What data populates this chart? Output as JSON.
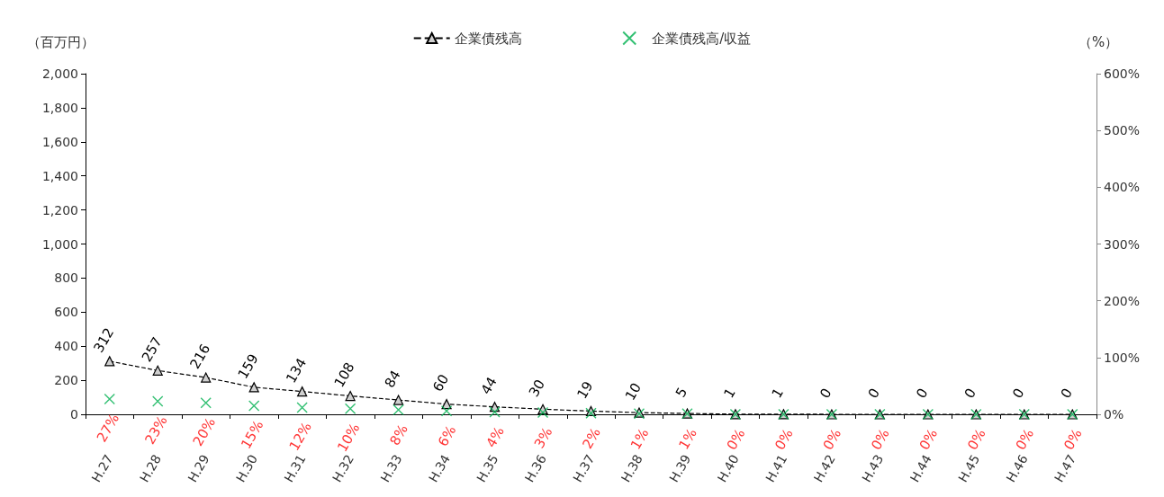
{
  "chart_data": {
    "type": "line",
    "categories": [
      "H.27",
      "H.28",
      "H.29",
      "H.30",
      "H.31",
      "H.32",
      "H.33",
      "H.34",
      "H.35",
      "H.36",
      "H.37",
      "H.38",
      "H.39",
      "H.40",
      "H.41",
      "H.42",
      "H.43",
      "H.44",
      "H.45",
      "H.46",
      "H.47"
    ],
    "ylabel": "（百万円）",
    "y2label": "（%）",
    "series": [
      {
        "name": "企業債残高",
        "color": "#000000",
        "marker": "triangle",
        "line_style": "dashed",
        "values": [
          312,
          257,
          216,
          159,
          134,
          108,
          84,
          60,
          44,
          30,
          19,
          10,
          5,
          1,
          1,
          0,
          0,
          0,
          0,
          0,
          0
        ],
        "value_labels": [
          "312",
          "257",
          "216",
          "159",
          "134",
          "108",
          "84",
          "60",
          "44",
          "30",
          "19",
          "10",
          "5",
          "1",
          "1",
          "0",
          "0",
          "0",
          "0",
          "0",
          "0"
        ]
      },
      {
        "name": "企業債残高/収益",
        "type": "scatter",
        "axis": "y2",
        "color": "#00b050",
        "marker": "cross",
        "values": [
          27,
          23,
          20,
          15,
          12,
          10,
          8,
          6,
          4,
          3,
          2,
          1,
          1,
          0,
          0,
          0,
          0,
          0,
          0,
          0,
          0
        ],
        "value_labels": [
          "27%",
          "23%",
          "20%",
          "15%",
          "12%",
          "10%",
          "8%",
          "6%",
          "4%",
          "3%",
          "2%",
          "1%",
          "1%",
          "0%",
          "0%",
          "0%",
          "0%",
          "0%",
          "0%",
          "0%",
          "0%"
        ]
      }
    ],
    "ylim": [
      0,
      2000
    ],
    "yticks": [
      0,
      200,
      400,
      600,
      800,
      {
        "value": 1000,
        "label": "1,000"
      },
      {
        "value": 1200,
        "label": "1,200"
      },
      {
        "value": 1400,
        "label": "1,400"
      },
      {
        "value": 1600,
        "label": "1,600"
      },
      {
        "value": 1800,
        "label": "1,800"
      },
      {
        "value": 2000,
        "label": "2,000"
      }
    ],
    "y2lim": [
      0,
      600
    ],
    "y2ticks": [
      {
        "value": 0,
        "label": "0%"
      },
      {
        "value": 100,
        "label": "100%"
      },
      {
        "value": 200,
        "label": "200%"
      },
      {
        "value": 300,
        "label": "300%"
      },
      {
        "value": 400,
        "label": "400%"
      },
      {
        "value": 500,
        "label": "500%"
      },
      {
        "value": 600,
        "label": "600%"
      }
    ],
    "grid": false,
    "legend": "top"
  }
}
